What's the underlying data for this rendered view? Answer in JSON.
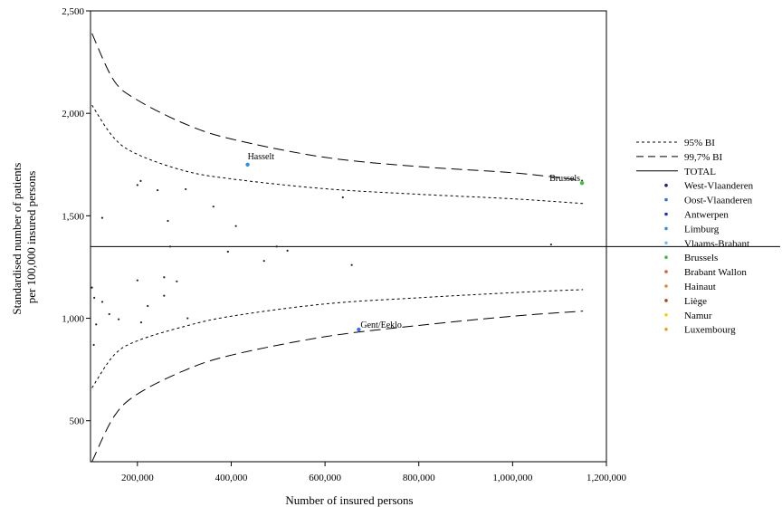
{
  "chart_data": {
    "type": "scatter",
    "xlabel": "Number of insured persons",
    "ylabel_lines": [
      "Standardised number of patients",
      "per 100,000 insured persons"
    ],
    "xlim": [
      100000,
      1200000
    ],
    "ylim": [
      300,
      2500
    ],
    "xticks": [
      200000,
      400000,
      600000,
      800000,
      1000000,
      1200000
    ],
    "xtick_labels": [
      "200,000",
      "400,000",
      "600,000",
      "800,000",
      "1,000,000",
      "1,200,000"
    ],
    "yticks": [
      500,
      1000,
      1500,
      2000,
      2500
    ],
    "ytick_labels": [
      "500",
      "1,000",
      "1,500",
      "2,000",
      "2,500"
    ],
    "total": 1350,
    "legend": [
      {
        "label": "95% BI",
        "kind": "line",
        "dash": "short"
      },
      {
        "label": "99,7% BI",
        "kind": "line",
        "dash": "long"
      },
      {
        "label": "TOTAL",
        "kind": "line",
        "dash": "solid"
      },
      {
        "label": "West-Vlaanderen",
        "kind": "dot",
        "color": "#1a237e"
      },
      {
        "label": "Oost-Vlaanderen",
        "kind": "dot",
        "color": "#3f6fd8"
      },
      {
        "label": "Antwerpen",
        "kind": "dot",
        "color": "#1f2ed1"
      },
      {
        "label": "Limburg",
        "kind": "dot",
        "color": "#2f8fe0"
      },
      {
        "label": "Vlaams-Brabant",
        "kind": "dot",
        "color": "#78c4ee"
      },
      {
        "label": "Brussels",
        "kind": "dot",
        "color": "#3cbf3c"
      },
      {
        "label": "Brabant Wallon",
        "kind": "dot",
        "color": "#e0622a"
      },
      {
        "label": "Hainaut",
        "kind": "dot",
        "color": "#f0852a"
      },
      {
        "label": "Liège",
        "kind": "dot",
        "color": "#b5402a"
      },
      {
        "label": "Namur",
        "kind": "dot",
        "color": "#f5cc20"
      },
      {
        "label": "Luxembourg",
        "kind": "dot",
        "color": "#f29a2e"
      }
    ],
    "labeled_points": [
      {
        "label": "Hasselt",
        "x": 435000,
        "y": 1750,
        "color": "#2f8fe0"
      },
      {
        "label": "Brussels",
        "x": 1148000,
        "y": 1660,
        "color": "#3cbf3c"
      },
      {
        "label": "Gent/Eeklo",
        "x": 672000,
        "y": 945,
        "color": "#3f6fd8"
      }
    ],
    "points": [
      {
        "x": 125000,
        "y": 1490
      },
      {
        "x": 200000,
        "y": 1650
      },
      {
        "x": 207000,
        "y": 1670
      },
      {
        "x": 243000,
        "y": 1625
      },
      {
        "x": 303000,
        "y": 1630
      },
      {
        "x": 362000,
        "y": 1545
      },
      {
        "x": 265000,
        "y": 1475
      },
      {
        "x": 410000,
        "y": 1450
      },
      {
        "x": 638000,
        "y": 1590
      },
      {
        "x": 270000,
        "y": 1350
      },
      {
        "x": 497000,
        "y": 1350
      },
      {
        "x": 1082000,
        "y": 1360
      },
      {
        "x": 393000,
        "y": 1325
      },
      {
        "x": 520000,
        "y": 1330
      },
      {
        "x": 470000,
        "y": 1280
      },
      {
        "x": 657000,
        "y": 1260
      },
      {
        "x": 257000,
        "y": 1200
      },
      {
        "x": 200000,
        "y": 1185
      },
      {
        "x": 284000,
        "y": 1180
      },
      {
        "x": 103000,
        "y": 1150
      },
      {
        "x": 257000,
        "y": 1110
      },
      {
        "x": 108000,
        "y": 1100
      },
      {
        "x": 125000,
        "y": 1080
      },
      {
        "x": 222000,
        "y": 1060
      },
      {
        "x": 140000,
        "y": 1020
      },
      {
        "x": 160000,
        "y": 995
      },
      {
        "x": 307000,
        "y": 1000
      },
      {
        "x": 208000,
        "y": 980
      },
      {
        "x": 112000,
        "y": 970
      },
      {
        "x": 107000,
        "y": 870
      }
    ],
    "ci95_points": [
      [
        103000,
        2040
      ],
      [
        150000,
        1880
      ],
      [
        200000,
        1800
      ],
      [
        300000,
        1720
      ],
      [
        400000,
        1680
      ],
      [
        600000,
        1632
      ],
      [
        800000,
        1605
      ],
      [
        1000000,
        1583
      ],
      [
        1150000,
        1560
      ]
    ],
    "ci997_points": [
      [
        103000,
        2390
      ],
      [
        150000,
        2160
      ],
      [
        200000,
        2065
      ],
      [
        300000,
        1950
      ],
      [
        400000,
        1875
      ],
      [
        600000,
        1785
      ],
      [
        800000,
        1740
      ],
      [
        1000000,
        1710
      ],
      [
        1150000,
        1672
      ]
    ],
    "ci95_lower": [
      [
        103000,
        660
      ],
      [
        150000,
        820
      ],
      [
        200000,
        890
      ],
      [
        300000,
        960
      ],
      [
        400000,
        1010
      ],
      [
        600000,
        1070
      ],
      [
        800000,
        1100
      ],
      [
        1000000,
        1125
      ],
      [
        1150000,
        1140
      ]
    ],
    "ci997_lower": [
      [
        103000,
        300
      ],
      [
        150000,
        520
      ],
      [
        200000,
        630
      ],
      [
        300000,
        745
      ],
      [
        400000,
        820
      ],
      [
        600000,
        910
      ],
      [
        800000,
        965
      ],
      [
        1000000,
        1010
      ],
      [
        1150000,
        1035
      ]
    ]
  }
}
